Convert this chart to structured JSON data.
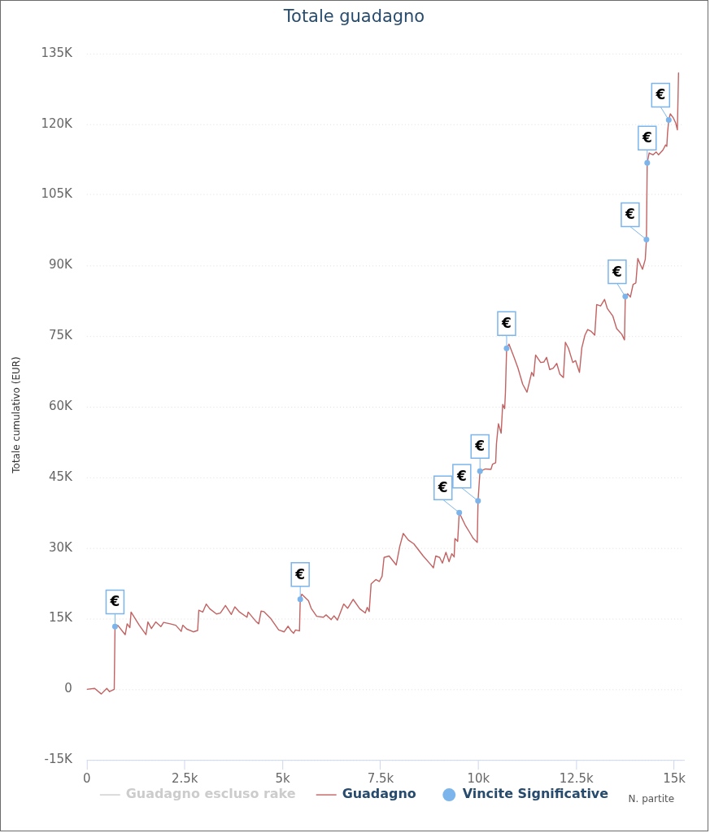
{
  "chart_data": {
    "type": "line",
    "title": "Totale guadagno",
    "xlabel": "N. partite",
    "ylabel": "Totale cumulativo (EUR)",
    "xlim": [
      0,
      15250
    ],
    "xticks": [
      0,
      {
        "value": 2500,
        "label": "2.5k"
      },
      {
        "value": 5000,
        "label": "5k"
      },
      {
        "value": 7500,
        "label": "7.5k"
      },
      {
        "value": 10000,
        "label": "10k"
      },
      {
        "value": 12500,
        "label": "12.5k"
      },
      {
        "value": 15000,
        "label": "15k"
      }
    ],
    "ylim": [
      -15000,
      135000
    ],
    "yticks": [
      {
        "value": -15000,
        "label": "-15K"
      },
      0,
      {
        "value": 15000,
        "label": "15K"
      },
      {
        "value": 30000,
        "label": "30K"
      },
      {
        "value": 45000,
        "label": "45K"
      },
      {
        "value": 60000,
        "label": "60K"
      },
      {
        "value": 75000,
        "label": "75K"
      },
      {
        "value": 90000,
        "label": "90K"
      },
      {
        "value": 105000,
        "label": "105K"
      },
      {
        "value": 120000,
        "label": "120K"
      },
      {
        "value": 135000,
        "label": "135K"
      }
    ],
    "grid": "y",
    "legend": "bottom",
    "series": [
      {
        "name": "Guadagno escluso rake",
        "color": "#cccccc",
        "marker": "none"
      },
      {
        "name": "Guadagno",
        "color": "#c26262",
        "marker": "none",
        "x": [
          0,
          200,
          370,
          510,
          580,
          700,
          720,
          790,
          980,
          1030,
          1100,
          1130,
          1340,
          1510,
          1560,
          1650,
          1760,
          1890,
          1960,
          2130,
          2270,
          2410,
          2450,
          2550,
          2720,
          2830,
          2860,
          2960,
          3050,
          3140,
          3310,
          3410,
          3540,
          3690,
          3780,
          3900,
          4090,
          4120,
          4310,
          4390,
          4450,
          4520,
          4690,
          4900,
          5040,
          5140,
          5210,
          5280,
          5330,
          5430,
          5450,
          5490,
          5660,
          5730,
          5870,
          6040,
          6110,
          6240,
          6310,
          6400,
          6560,
          6660,
          6800,
          6970,
          7110,
          7160,
          7210,
          7260,
          7380,
          7470,
          7540,
          7590,
          7720,
          7900,
          7990,
          8080,
          8210,
          8350,
          8590,
          8770,
          8850,
          8910,
          9010,
          9080,
          9170,
          9250,
          9320,
          9380,
          9400,
          9470,
          9510,
          9660,
          9770,
          9870,
          9970,
          9990,
          10040,
          10180,
          10320,
          10360,
          10440,
          10460,
          10510,
          10580,
          10620,
          10670,
          10690,
          10720,
          10780,
          10910,
          11010,
          11130,
          11240,
          11360,
          11410,
          11460,
          11590,
          11670,
          11740,
          11820,
          11910,
          12000,
          12080,
          12170,
          12220,
          12300,
          12410,
          12480,
          12580,
          12640,
          12720,
          12790,
          12880,
          12970,
          13020,
          13120,
          13220,
          13290,
          13430,
          13530,
          13660,
          13730,
          13750,
          13810,
          13880,
          13950,
          14020,
          14070,
          14140,
          14190,
          14260,
          14290,
          14310,
          14360,
          14460,
          14540,
          14600,
          14710,
          14780,
          14810,
          14830,
          14860,
          14900,
          14980,
          15040,
          15080,
          15110
        ],
        "values": [
          0,
          200,
          -1000,
          200,
          -500,
          0,
          13300,
          13600,
          11600,
          13900,
          13100,
          16400,
          13600,
          11600,
          14300,
          12900,
          14300,
          13300,
          14200,
          13900,
          13600,
          12300,
          13600,
          12800,
          12200,
          12500,
          16800,
          16400,
          18100,
          17100,
          16000,
          16200,
          17800,
          15900,
          17500,
          16400,
          15300,
          16400,
          14500,
          13900,
          16600,
          16500,
          15100,
          12600,
          12200,
          13400,
          12500,
          11900,
          12600,
          12400,
          19100,
          20200,
          18800,
          17200,
          15500,
          15300,
          15800,
          14800,
          15600,
          14700,
          18100,
          17200,
          19100,
          17100,
          16200,
          17400,
          16500,
          22400,
          23300,
          22900,
          24000,
          28000,
          28300,
          26400,
          30300,
          33100,
          31700,
          30900,
          28300,
          26600,
          25800,
          28300,
          28000,
          26800,
          29100,
          27100,
          28800,
          28100,
          32000,
          31400,
          37500,
          34900,
          33400,
          32000,
          31200,
          40000,
          46300,
          46800,
          46700,
          47800,
          48100,
          52100,
          56400,
          54400,
          60500,
          59600,
          63100,
          72400,
          73300,
          70500,
          68200,
          64800,
          63100,
          67300,
          66500,
          71000,
          69400,
          69500,
          70500,
          67900,
          68200,
          69200,
          66900,
          66200,
          73700,
          72400,
          69400,
          69800,
          67300,
          72500,
          75200,
          76400,
          76000,
          75200,
          81700,
          81400,
          82800,
          80900,
          79300,
          76600,
          75400,
          74200,
          83400,
          84000,
          83300,
          86000,
          86300,
          91500,
          90100,
          89200,
          91300,
          95500,
          111800,
          113900,
          113500,
          114100,
          113500,
          114500,
          115600,
          115300,
          118200,
          120900,
          122200,
          121300,
          120200,
          118800,
          130900
        ]
      },
      {
        "name": "Vincite Significative",
        "type": "scatter",
        "color": "#7cb5ec",
        "marker": "circle",
        "x": [
          720,
          5450,
          9510,
          9990,
          10040,
          10720,
          13750,
          14290,
          14310,
          14860
        ],
        "values": [
          13300,
          19100,
          37500,
          40000,
          46300,
          72400,
          83400,
          95500,
          111800,
          120900
        ],
        "value_labels": [
          "€",
          "€",
          "€",
          "€",
          "€",
          "€",
          "€",
          "€",
          "€",
          "€"
        ]
      }
    ]
  }
}
